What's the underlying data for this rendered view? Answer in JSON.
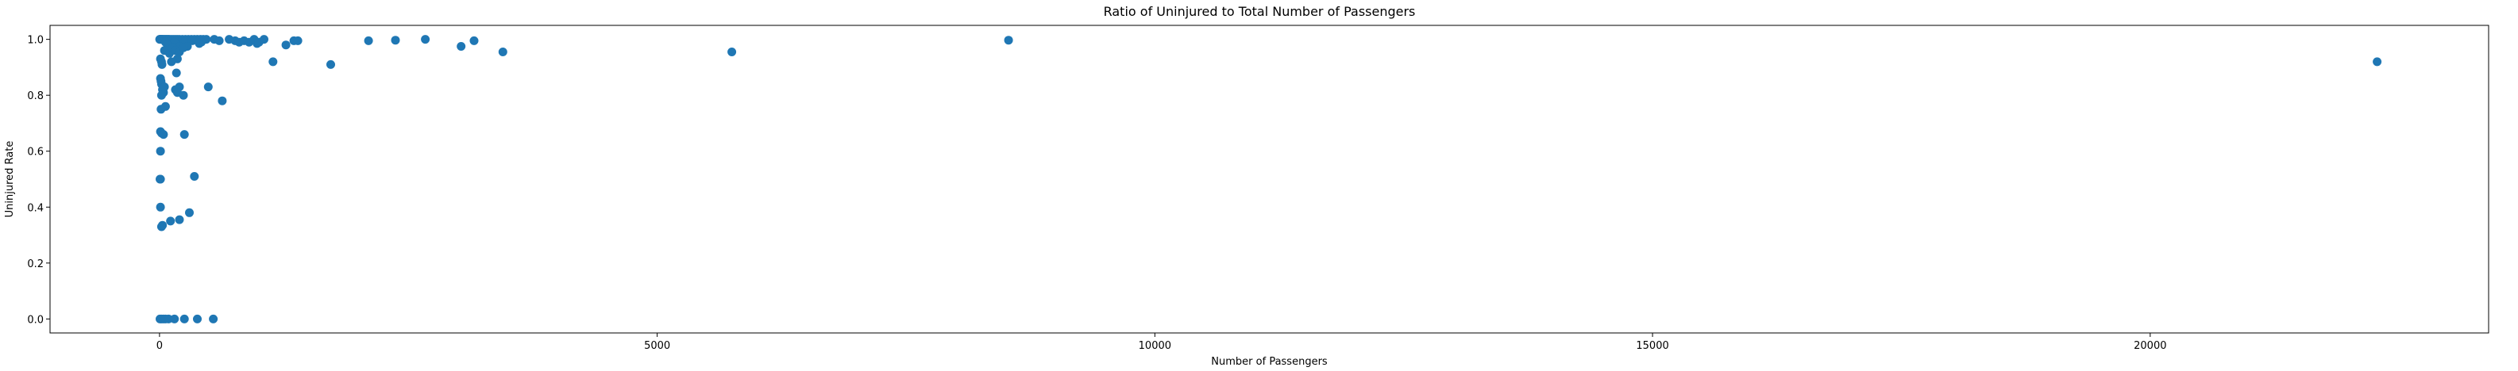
{
  "chart_data": {
    "type": "scatter",
    "title": "Ratio of Uninjured to Total Number of Passengers",
    "xlabel": "Number of Passengers",
    "ylabel": "Uninjured Rate",
    "xlim": [
      -1100,
      23400
    ],
    "ylim": [
      -0.05,
      1.05
    ],
    "xticks": [
      0,
      5000,
      10000,
      15000,
      20000
    ],
    "yticks": [
      0.0,
      0.2,
      0.4,
      0.6,
      0.8,
      1.0
    ],
    "xtick_labels": [
      "0",
      "5000",
      "10000",
      "15000",
      "20000"
    ],
    "ytick_labels": [
      "0.0",
      "0.2",
      "0.4",
      "0.6",
      "0.8",
      "1.0"
    ],
    "grid": false,
    "marker_color": "#1f77b4",
    "series": [
      {
        "points": [
          [
            2,
            1.0
          ],
          [
            5,
            1.0
          ],
          [
            10,
            1.0
          ],
          [
            15,
            1.0
          ],
          [
            20,
            1.0
          ],
          [
            25,
            1.0
          ],
          [
            30,
            1.0
          ],
          [
            40,
            1.0
          ],
          [
            50,
            1.0
          ],
          [
            60,
            1.0
          ],
          [
            70,
            1.0
          ],
          [
            80,
            1.0
          ],
          [
            90,
            1.0
          ],
          [
            100,
            1.0
          ],
          [
            120,
            1.0
          ],
          [
            140,
            1.0
          ],
          [
            160,
            1.0
          ],
          [
            180,
            1.0
          ],
          [
            200,
            1.0
          ],
          [
            230,
            1.0
          ],
          [
            260,
            1.0
          ],
          [
            290,
            1.0
          ],
          [
            320,
            1.0
          ],
          [
            350,
            1.0
          ],
          [
            380,
            1.0
          ],
          [
            410,
            1.0
          ],
          [
            440,
            1.0
          ],
          [
            470,
            1.0
          ],
          [
            60,
            0.99
          ],
          [
            150,
            0.99
          ],
          [
            250,
            0.99
          ],
          [
            330,
            0.995
          ],
          [
            420,
            0.99
          ],
          [
            80,
            0.98
          ],
          [
            150,
            0.97
          ],
          [
            200,
            0.975
          ],
          [
            280,
            0.975
          ],
          [
            400,
            0.985
          ],
          [
            50,
            0.96
          ],
          [
            100,
            0.95
          ],
          [
            130,
            0.97
          ],
          [
            160,
            0.96
          ],
          [
            200,
            0.955
          ],
          [
            240,
            0.97
          ],
          [
            180,
            0.93
          ],
          [
            120,
            0.92
          ],
          [
            20,
            0.92
          ],
          [
            10,
            0.93
          ],
          [
            25,
            0.91
          ],
          [
            170,
            0.88
          ],
          [
            10,
            0.86
          ],
          [
            15,
            0.85
          ],
          [
            20,
            0.84
          ],
          [
            30,
            0.82
          ],
          [
            40,
            0.81
          ],
          [
            50,
            0.83
          ],
          [
            160,
            0.82
          ],
          [
            200,
            0.83
          ],
          [
            180,
            0.81
          ],
          [
            240,
            0.8
          ],
          [
            20,
            0.8
          ],
          [
            60,
            0.76
          ],
          [
            15,
            0.75
          ],
          [
            10,
            0.67
          ],
          [
            20,
            0.665
          ],
          [
            40,
            0.66
          ],
          [
            250,
            0.66
          ],
          [
            10,
            0.6
          ],
          [
            5,
            0.5
          ],
          [
            10,
            0.5
          ],
          [
            350,
            0.51
          ],
          [
            10,
            0.4
          ],
          [
            300,
            0.38
          ],
          [
            110,
            0.35
          ],
          [
            200,
            0.355
          ],
          [
            20,
            0.33
          ],
          [
            30,
            0.335
          ],
          [
            5,
            0.0
          ],
          [
            20,
            0.0
          ],
          [
            40,
            0.0
          ],
          [
            60,
            0.0
          ],
          [
            90,
            0.0
          ],
          [
            150,
            0.0
          ],
          [
            250,
            0.0
          ],
          [
            380,
            0.0
          ],
          [
            540,
            0.0
          ],
          [
            490,
            0.83
          ],
          [
            630,
            0.78
          ],
          [
            550,
            1.0
          ],
          [
            600,
            0.995
          ],
          [
            700,
            1.0
          ],
          [
            760,
            0.995
          ],
          [
            800,
            0.99
          ],
          [
            850,
            0.995
          ],
          [
            900,
            0.99
          ],
          [
            950,
            1.0
          ],
          [
            980,
            0.985
          ],
          [
            1000,
            0.99
          ],
          [
            1050,
            1.0
          ],
          [
            1140,
            0.92
          ],
          [
            1270,
            0.98
          ],
          [
            1350,
            0.995
          ],
          [
            1390,
            0.995
          ],
          [
            1720,
            0.91
          ],
          [
            2100,
            0.995
          ],
          [
            2370,
            0.997
          ],
          [
            2670,
            1.0
          ],
          [
            3030,
            0.975
          ],
          [
            3160,
            0.995
          ],
          [
            3450,
            0.955
          ],
          [
            5750,
            0.955
          ],
          [
            8530,
            0.997
          ],
          [
            22280,
            0.92
          ]
        ]
      }
    ]
  }
}
